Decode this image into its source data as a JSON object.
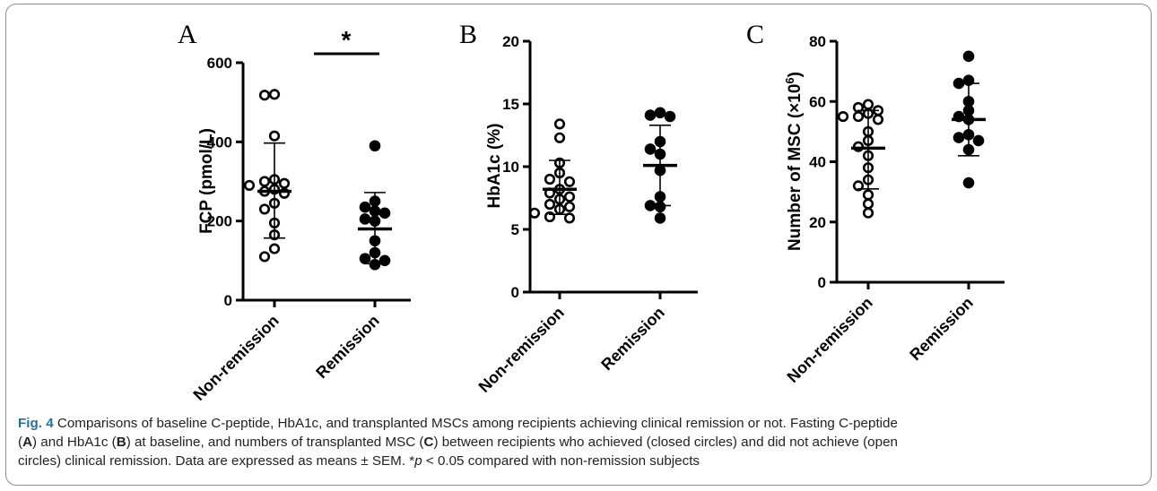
{
  "chart_data": [
    {
      "type": "scatter",
      "panel": "A",
      "ylabel": "FCP (pmol/L)",
      "ylim": [
        0,
        600
      ],
      "yticks": [
        "0",
        "200",
        "400",
        "600"
      ],
      "categories": [
        "Non-remission",
        "Remission"
      ],
      "groups": [
        {
          "name": "Non-remission",
          "marker": "open",
          "values": [
            520,
            518,
            415,
            305,
            300,
            295,
            290,
            280,
            275,
            270,
            245,
            230,
            195,
            165,
            130,
            110
          ],
          "mean": 275,
          "error": [
            157,
            397
          ]
        },
        {
          "name": "Remission",
          "marker": "closed",
          "values": [
            390,
            250,
            235,
            225,
            220,
            205,
            200,
            150,
            120,
            105,
            100,
            90
          ],
          "mean": 180,
          "error": [
            92,
            272
          ]
        }
      ],
      "significance": "*"
    },
    {
      "type": "scatter",
      "panel": "B",
      "ylabel": "HbA1c (%)",
      "ylim": [
        0,
        20
      ],
      "yticks": [
        "0",
        "5",
        "10",
        "15",
        "20"
      ],
      "categories": [
        "Non-remission",
        "Remission"
      ],
      "groups": [
        {
          "name": "Non-remission",
          "marker": "open",
          "values": [
            13.4,
            12.3,
            10.3,
            9.5,
            9.0,
            8.8,
            8.2,
            7.9,
            7.6,
            7.4,
            7.0,
            6.8,
            6.6,
            6.3,
            6.0,
            5.9
          ],
          "mean": 8.2,
          "error": [
            6.2,
            10.5
          ]
        },
        {
          "name": "Remission",
          "marker": "closed",
          "values": [
            14.3,
            14.1,
            14.0,
            12.0,
            11.4,
            11.0,
            9.7,
            7.6,
            6.9,
            6.8,
            5.9
          ],
          "mean": 10.1,
          "error": [
            6.9,
            13.3
          ]
        }
      ]
    },
    {
      "type": "scatter",
      "panel": "C",
      "ylabel": "Number of MSC (×10",
      "ylabel_sup": "6",
      "ylabel_end": ")",
      "ylim": [
        0,
        80
      ],
      "yticks": [
        "0",
        "20",
        "40",
        "60",
        "80"
      ],
      "categories": [
        "Non-remission",
        "Remission"
      ],
      "groups": [
        {
          "name": "Non-remission",
          "marker": "open",
          "values": [
            59,
            58,
            57,
            56,
            55,
            55,
            54,
            50,
            47,
            45,
            42,
            38,
            34,
            32,
            29,
            26,
            23
          ],
          "mean": 44.5,
          "error": [
            31,
            57
          ]
        },
        {
          "name": "Remission",
          "marker": "closed",
          "values": [
            75,
            67,
            66,
            60,
            57,
            55,
            54,
            49,
            48,
            47,
            44,
            33
          ],
          "mean": 54,
          "error": [
            42,
            66
          ]
        }
      ]
    }
  ],
  "caption": {
    "fig_label": "Fig. 4",
    "line1": " Comparisons of baseline C-peptide, HbA1c, and transplanted MSCs among recipients achieving clinical remission or not. Fasting C-peptide",
    "line2_a": "(",
    "line2_A": "A",
    "line2_b": ") and HbA1c (",
    "line2_B": "B",
    "line2_c": ") at baseline, and numbers of transplanted MSC (",
    "line2_C": "C",
    "line2_d": ") between recipients who achieved (closed circles) and did not achieve (open",
    "line3_a": "circles) clinical remission. Data are expressed as means ± SEM. *",
    "line3_p": "p",
    "line3_b": " < 0.05 compared with non-remission subjects"
  },
  "colors": {
    "marks": "#000000",
    "caption_label": "#2a6f97"
  }
}
